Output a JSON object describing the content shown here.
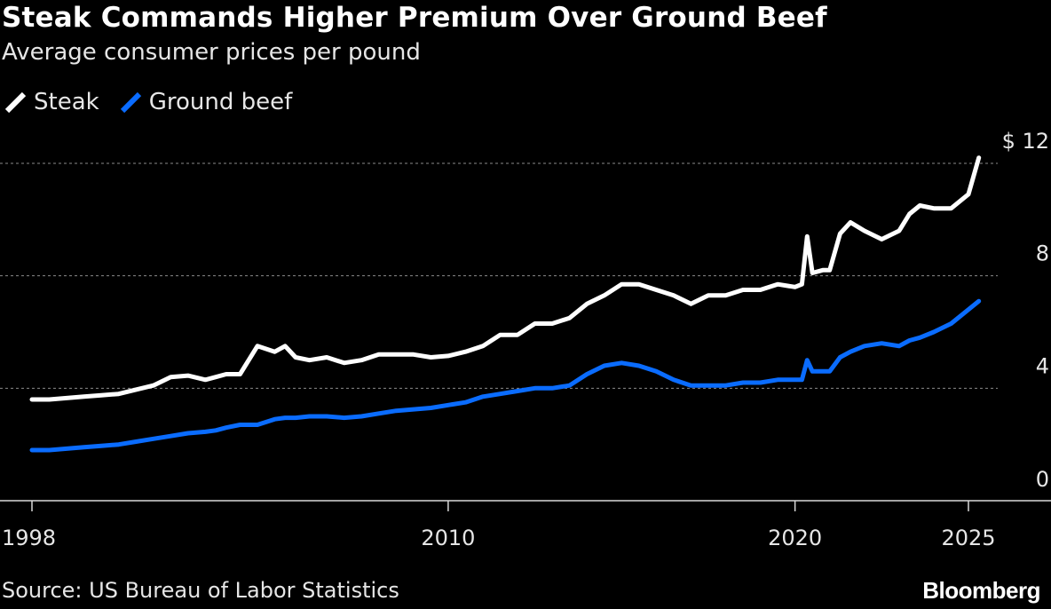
{
  "chart_data": {
    "type": "line",
    "title": "Steak Commands Higher Premium Over Ground Beef",
    "subtitle": "Average consumer prices per pound",
    "source": "Source: US Bureau of Labor Statistics",
    "brand": "Bloomberg",
    "xlabel": "",
    "ylabel": "",
    "xlim": [
      1998,
      2025.8
    ],
    "ylim": [
      0,
      12.5
    ],
    "x_ticks": [
      1998,
      2010,
      2020,
      2025
    ],
    "x_tick_labels": [
      "1998",
      "2010",
      "2020",
      "2025"
    ],
    "y_ticks": [
      0,
      4,
      8,
      12
    ],
    "y_tick_labels": [
      "0",
      "4",
      "8",
      "$ 12"
    ],
    "grid": true,
    "legend_position": "top-left",
    "series": [
      {
        "name": "Steak",
        "color": "#ffffff",
        "x": [
          1998,
          1998.5,
          1999,
          1999.5,
          2000,
          2000.5,
          2001,
          2001.5,
          2002,
          2002.5,
          2003,
          2003.3,
          2003.6,
          2004,
          2004.5,
          2005,
          2005.3,
          2005.6,
          2006,
          2006.5,
          2007,
          2007.5,
          2008,
          2008.5,
          2009,
          2009.5,
          2010,
          2010.5,
          2011,
          2011.5,
          2012,
          2012.5,
          2013,
          2013.5,
          2014,
          2014.5,
          2015,
          2015.5,
          2016,
          2016.5,
          2017,
          2017.5,
          2018,
          2018.5,
          2019,
          2019.5,
          2020,
          2020.2,
          2020.35,
          2020.5,
          2020.8,
          2021,
          2021.3,
          2021.6,
          2022,
          2022.5,
          2023,
          2023.3,
          2023.6,
          2024,
          2024.5,
          2025,
          2025.3
        ],
        "values": [
          3.6,
          3.6,
          3.65,
          3.7,
          3.75,
          3.8,
          3.95,
          4.1,
          4.4,
          4.45,
          4.3,
          4.4,
          4.5,
          4.5,
          5.5,
          5.3,
          5.5,
          5.1,
          5.0,
          5.1,
          4.9,
          5.0,
          5.2,
          5.2,
          5.2,
          5.1,
          5.15,
          5.3,
          5.5,
          5.9,
          5.9,
          6.3,
          6.3,
          6.5,
          7.0,
          7.3,
          7.7,
          7.7,
          7.5,
          7.3,
          7.0,
          7.3,
          7.3,
          7.5,
          7.5,
          7.7,
          7.6,
          7.7,
          9.4,
          8.1,
          8.2,
          8.2,
          9.5,
          9.9,
          9.6,
          9.3,
          9.6,
          10.2,
          10.5,
          10.4,
          10.4,
          10.9,
          12.2
        ]
      },
      {
        "name": "Ground beef",
        "color": "#0a6cff",
        "x": [
          1998,
          1998.5,
          1999,
          1999.5,
          2000,
          2000.5,
          2001,
          2001.5,
          2002,
          2002.5,
          2003,
          2003.3,
          2003.6,
          2004,
          2004.5,
          2005,
          2005.3,
          2005.6,
          2006,
          2006.5,
          2007,
          2007.5,
          2008,
          2008.5,
          2009,
          2009.5,
          2010,
          2010.5,
          2011,
          2011.5,
          2012,
          2012.5,
          2013,
          2013.5,
          2014,
          2014.5,
          2015,
          2015.5,
          2016,
          2016.5,
          2017,
          2017.5,
          2018,
          2018.5,
          2019,
          2019.5,
          2020,
          2020.2,
          2020.35,
          2020.5,
          2020.8,
          2021,
          2021.3,
          2021.6,
          2022,
          2022.5,
          2023,
          2023.3,
          2023.6,
          2024,
          2024.5,
          2025,
          2025.3
        ],
        "values": [
          1.8,
          1.8,
          1.85,
          1.9,
          1.95,
          2.0,
          2.1,
          2.2,
          2.3,
          2.4,
          2.45,
          2.5,
          2.6,
          2.7,
          2.7,
          2.9,
          2.95,
          2.95,
          3.0,
          3.0,
          2.95,
          3.0,
          3.1,
          3.2,
          3.25,
          3.3,
          3.4,
          3.5,
          3.7,
          3.8,
          3.9,
          4.0,
          4.0,
          4.1,
          4.5,
          4.8,
          4.9,
          4.8,
          4.6,
          4.3,
          4.1,
          4.1,
          4.1,
          4.2,
          4.2,
          4.3,
          4.3,
          4.3,
          5.0,
          4.6,
          4.6,
          4.6,
          5.1,
          5.3,
          5.5,
          5.6,
          5.5,
          5.7,
          5.8,
          6.0,
          6.3,
          6.8,
          7.1
        ]
      }
    ]
  }
}
